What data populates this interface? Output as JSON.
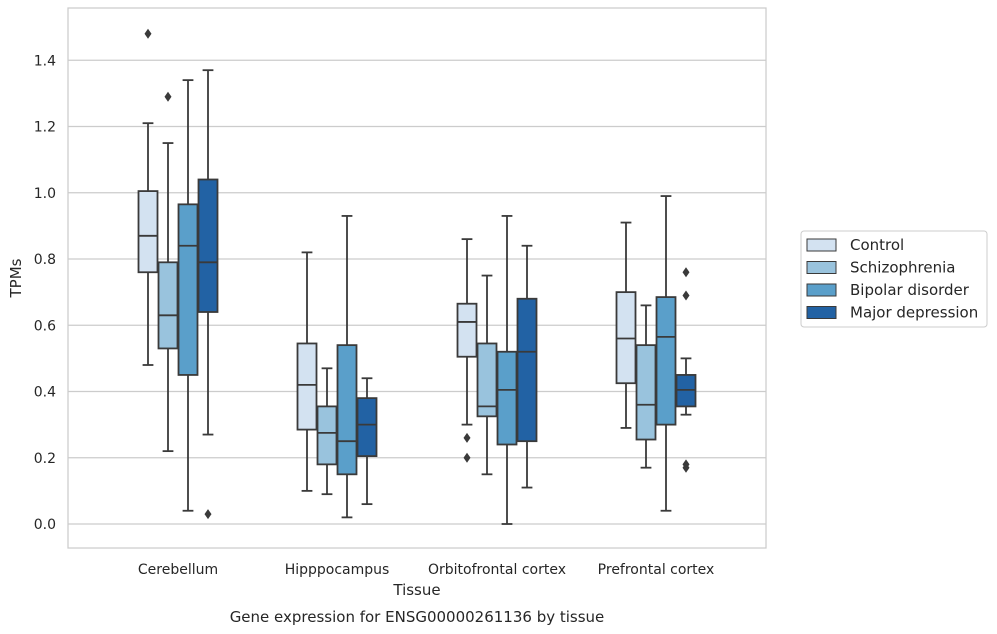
{
  "chart_data": {
    "type": "box",
    "xlabel": "Tissue",
    "ylabel": "TPMs",
    "caption": "Gene expression for ENSG00000261136 by tissue",
    "ylim": [
      -0.07,
      1.56
    ],
    "yticks": [
      "0.0",
      "0.2",
      "0.4",
      "0.6",
      "0.8",
      "1.0",
      "1.2",
      "1.4"
    ],
    "grid": true,
    "legend_position": "right",
    "categories": [
      "Cerebellum",
      "Hipppocampus",
      "Orbitofrontal cortex",
      "Prefrontal cortex"
    ],
    "series": [
      {
        "name": "Control",
        "color": "#d3e2f1",
        "boxes": [
          {
            "whislo": 0.48,
            "q1": 0.76,
            "med": 0.87,
            "q3": 1.005,
            "whishi": 1.21,
            "fliers": [
              1.48
            ]
          },
          {
            "whislo": 0.1,
            "q1": 0.285,
            "med": 0.42,
            "q3": 0.545,
            "whishi": 0.82,
            "fliers": []
          },
          {
            "whislo": 0.3,
            "q1": 0.505,
            "med": 0.61,
            "q3": 0.665,
            "whishi": 0.86,
            "fliers": [
              0.26,
              0.2
            ]
          },
          {
            "whislo": 0.29,
            "q1": 0.425,
            "med": 0.56,
            "q3": 0.7,
            "whishi": 0.91,
            "fliers": []
          }
        ]
      },
      {
        "name": "Schizophrenia",
        "color": "#99c3dd",
        "boxes": [
          {
            "whislo": 0.22,
            "q1": 0.53,
            "med": 0.63,
            "q3": 0.79,
            "whishi": 1.15,
            "fliers": [
              1.29
            ]
          },
          {
            "whislo": 0.09,
            "q1": 0.18,
            "med": 0.275,
            "q3": 0.355,
            "whishi": 0.47,
            "fliers": []
          },
          {
            "whislo": 0.15,
            "q1": 0.325,
            "med": 0.355,
            "q3": 0.545,
            "whishi": 0.75,
            "fliers": []
          },
          {
            "whislo": 0.17,
            "q1": 0.255,
            "med": 0.36,
            "q3": 0.54,
            "whishi": 0.66,
            "fliers": []
          }
        ]
      },
      {
        "name": "Bipolar disorder",
        "color": "#5a9fca",
        "boxes": [
          {
            "whislo": 0.04,
            "q1": 0.45,
            "med": 0.84,
            "q3": 0.965,
            "whishi": 1.34,
            "fliers": []
          },
          {
            "whislo": 0.02,
            "q1": 0.15,
            "med": 0.25,
            "q3": 0.54,
            "whishi": 0.93,
            "fliers": []
          },
          {
            "whislo": 0.0,
            "q1": 0.24,
            "med": 0.405,
            "q3": 0.52,
            "whishi": 0.93,
            "fliers": []
          },
          {
            "whislo": 0.04,
            "q1": 0.3,
            "med": 0.565,
            "q3": 0.685,
            "whishi": 0.99,
            "fliers": []
          }
        ]
      },
      {
        "name": "Major depression",
        "color": "#2262a4",
        "boxes": [
          {
            "whislo": 0.27,
            "q1": 0.64,
            "med": 0.79,
            "q3": 1.04,
            "whishi": 1.37,
            "fliers": [
              0.03
            ]
          },
          {
            "whislo": 0.06,
            "q1": 0.205,
            "med": 0.3,
            "q3": 0.38,
            "whishi": 0.44,
            "fliers": []
          },
          {
            "whislo": 0.11,
            "q1": 0.25,
            "med": 0.52,
            "q3": 0.68,
            "whishi": 0.84,
            "fliers": []
          },
          {
            "whislo": 0.33,
            "q1": 0.355,
            "med": 0.405,
            "q3": 0.45,
            "whishi": 0.5,
            "fliers": [
              0.76,
              0.69,
              0.18,
              0.17
            ]
          }
        ]
      }
    ]
  }
}
